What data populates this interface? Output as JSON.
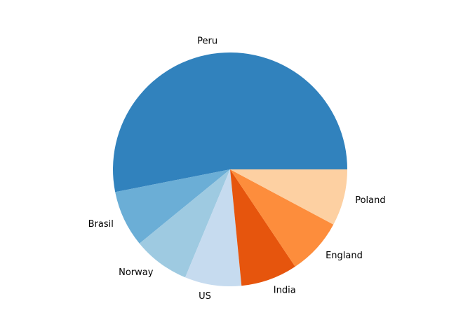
{
  "chart_data": {
    "type": "pie",
    "labels": [
      "Peru",
      "Brasil",
      "Norway",
      "US",
      "India",
      "England",
      "Poland"
    ],
    "values": [
      53.0,
      7.8,
      7.8,
      7.8,
      7.8,
      7.8,
      7.8
    ],
    "colors": [
      "#3182bd",
      "#6baed6",
      "#9ecae1",
      "#c6dbef",
      "#e6550d",
      "#fd8d3c",
      "#fdd0a2"
    ],
    "start_angle_deg": 0,
    "direction": "counterclockwise",
    "legend": "none"
  }
}
